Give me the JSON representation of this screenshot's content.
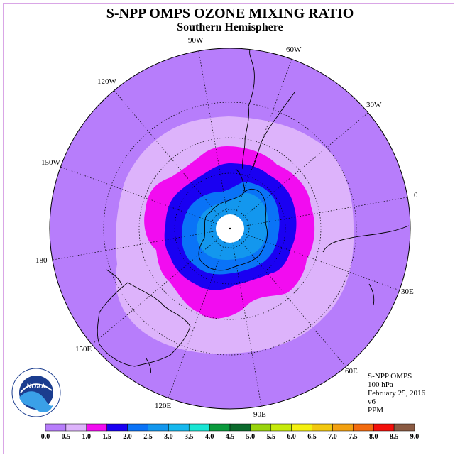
{
  "title": "S-NPP OMPS OZONE MIXING RATIO",
  "subtitle": "Southern Hemisphere",
  "longitude_labels": [
    "0",
    "30E",
    "60E",
    "90E",
    "120E",
    "150E",
    "180",
    "150W",
    "120W",
    "90W",
    "60W",
    "30W"
  ],
  "info": {
    "instrument": "S-NPP OMPS",
    "level": "100 hPa",
    "date": "February 25, 2016",
    "version": "v6",
    "units": "PPM"
  },
  "logo": {
    "text": "NOAA",
    "ring_text": "NATIONAL OCEANIC AND ATMOSPHERIC ADMINISTRATION · U.S. DEPARTMENT OF COMMERCE"
  },
  "colorbar": {
    "ticks": [
      "0.0",
      "0.5",
      "1.0",
      "1.5",
      "2.0",
      "2.5",
      "3.0",
      "3.5",
      "4.0",
      "4.5",
      "5.0",
      "5.5",
      "6.0",
      "6.5",
      "7.0",
      "7.5",
      "8.0",
      "8.5",
      "9.0"
    ],
    "colors": [
      "#b77dfb",
      "#ddb3fb",
      "#f20cf0",
      "#1a00f2",
      "#0a73f7",
      "#1397ee",
      "#16b8ee",
      "#19e6d4",
      "#0a9a3c",
      "#0b6a2c",
      "#99d40c",
      "#c6ea0a",
      "#f4f010",
      "#f2c80f",
      "#f2a010",
      "#f26b0f",
      "#f2100b",
      "#8a5a42"
    ]
  }
}
